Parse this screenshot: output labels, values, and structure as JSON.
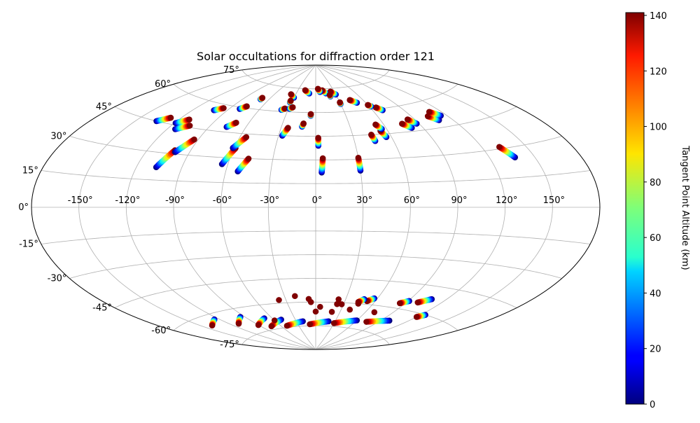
{
  "chart_data": {
    "type": "scatter",
    "projection": "aitoff",
    "title": "Solar occultations for diffraction order 121",
    "xlabel": "",
    "ylabel": "",
    "xlim": [
      -180,
      180
    ],
    "ylim": [
      -90,
      90
    ],
    "grid": true,
    "x_ticks": [
      "-150°",
      "-120°",
      "-90°",
      "-60°",
      "-30°",
      "0°",
      "30°",
      "60°",
      "90°",
      "120°",
      "150°"
    ],
    "x_tick_values": [
      -150,
      -120,
      -90,
      -60,
      -30,
      0,
      30,
      60,
      90,
      120,
      150
    ],
    "y_ticks": [
      "-75°",
      "-60°",
      "-45°",
      "-30°",
      "-15°",
      "0°",
      "15°",
      "30°",
      "45°",
      "60°",
      "75°"
    ],
    "y_tick_values": [
      -75,
      -60,
      -45,
      -30,
      -15,
      0,
      15,
      30,
      45,
      60,
      75
    ],
    "colorbar": {
      "label": "Tangent Point Altitude (km)",
      "min": 0,
      "max": 141,
      "ticks": [
        "0",
        "20",
        "40",
        "60",
        "80",
        "100",
        "120",
        "140"
      ],
      "tick_values": [
        0,
        20,
        40,
        60,
        80,
        100,
        120,
        140
      ],
      "colormap": "jet"
    },
    "tracks": [
      {
        "lon_start": -135,
        "lat_start": 45,
        "lon_end": -128,
        "lat_end": 48
      },
      {
        "lon_start": -119,
        "lat_start": 46,
        "lon_end": -112,
        "lat_end": 49
      },
      {
        "lon_start": -114,
        "lat_start": 43,
        "lon_end": -106,
        "lat_end": 46
      },
      {
        "lon_start": -107,
        "lat_start": 22,
        "lon_end": -101,
        "lat_end": 32
      },
      {
        "lon_start": -100,
        "lat_start": 31,
        "lon_end": -93,
        "lat_end": 39
      },
      {
        "lon_start": -102,
        "lat_start": 56,
        "lon_end": -96,
        "lat_end": 58
      },
      {
        "lon_start": -80,
        "lat_start": 59,
        "lon_end": -76,
        "lat_end": 61
      },
      {
        "lon_start": -76,
        "lat_start": 48,
        "lon_end": -71,
        "lat_end": 51
      },
      {
        "lon_start": -64,
        "lat_start": 26,
        "lon_end": -59,
        "lat_end": 36
      },
      {
        "lon_start": -61,
        "lat_start": 36,
        "lon_end": -55,
        "lat_end": 43
      },
      {
        "lon_start": -52,
        "lat_start": 22,
        "lon_end": -47,
        "lat_end": 30
      },
      {
        "lon_start": -27,
        "lat_start": 45,
        "lon_end": -24,
        "lat_end": 50
      },
      {
        "lon_start": -37,
        "lat_start": 61,
        "lon_end": -34,
        "lat_end": 62
      },
      {
        "lon_start": -29,
        "lat_start": 62,
        "lon_end": -26,
        "lat_end": 63
      },
      {
        "lon_start": -12,
        "lat_start": 51,
        "lon_end": -11,
        "lat_end": 53
      },
      {
        "lon_start": 2,
        "lat_start": 39,
        "lon_end": 2,
        "lat_end": 44
      },
      {
        "lon_start": 4,
        "lat_start": 22,
        "lon_end": 5,
        "lat_end": 31
      },
      {
        "lon_start": 30,
        "lat_start": 23,
        "lon_end": 30,
        "lat_end": 31
      },
      {
        "lon_start": 46,
        "lat_start": 41,
        "lon_end": 45,
        "lat_end": 45
      },
      {
        "lon_start": 56,
        "lat_start": 43,
        "lon_end": 54,
        "lat_end": 47
      },
      {
        "lon_start": 56,
        "lat_start": 48,
        "lon_end": 53,
        "lat_end": 51
      },
      {
        "lon_start": 81,
        "lat_start": 47,
        "lon_end": 76,
        "lat_end": 50
      },
      {
        "lon_start": 88,
        "lat_start": 49,
        "lon_end": 84,
        "lat_end": 52
      },
      {
        "lon_start": 109,
        "lat_start": 49,
        "lon_end": 104,
        "lat_end": 52
      },
      {
        "lon_start": 115,
        "lat_start": 51,
        "lon_end": 110,
        "lat_end": 54
      },
      {
        "lon_start": 137,
        "lat_start": 25,
        "lon_end": 132,
        "lat_end": 31
      },
      {
        "lon_start": 70,
        "lat_start": 59,
        "lon_end": 66,
        "lat_end": 61
      },
      {
        "lon_start": 50,
        "lat_start": 65,
        "lon_end": 44,
        "lat_end": 67
      },
      {
        "lon_start": 30,
        "lat_start": 71,
        "lon_end": 24,
        "lat_end": 73
      },
      {
        "lon_start": 16,
        "lat_start": 72,
        "lon_end": 11,
        "lat_end": 74
      },
      {
        "lon_start": -10,
        "lat_start": 72,
        "lon_end": -18,
        "lat_end": 74
      },
      {
        "lon_start": -30,
        "lat_start": 69,
        "lon_end": -37,
        "lat_end": 71
      },
      {
        "lon_start": 7,
        "lat_start": 73,
        "lon_end": 4,
        "lat_end": 75
      },
      {
        "lon_start": -5,
        "lat_start": 58,
        "lon_end": -5,
        "lat_end": 59
      },
      {
        "lon_start": 30,
        "lat_start": 65,
        "lon_end": 30,
        "lat_end": 66
      },
      {
        "lon_start": 62,
        "lat_start": 62,
        "lon_end": 60,
        "lat_end": 63
      },
      {
        "lon_start": 21,
        "lat_start": 70,
        "lon_end": 21,
        "lat_end": 71
      },
      {
        "lon_start": -32,
        "lat_start": 66,
        "lon_end": -32,
        "lat_end": 67
      },
      {
        "lon_start": -70,
        "lat_start": 66,
        "lon_end": -70,
        "lat_end": 67
      },
      {
        "lon_start": -125,
        "lat_start": -63,
        "lon_end": -140,
        "lat_end": -65
      },
      {
        "lon_start": -95,
        "lat_start": -65,
        "lon_end": -110,
        "lat_end": -68
      },
      {
        "lon_start": -70,
        "lat_start": -68,
        "lon_end": -90,
        "lat_end": -71
      },
      {
        "lon_start": -50,
        "lat_start": -70,
        "lon_end": -75,
        "lat_end": -73
      },
      {
        "lon_start": -20,
        "lat_start": -72,
        "lon_end": -50,
        "lat_end": -74
      },
      {
        "lon_start": 20,
        "lat_start": -72,
        "lon_end": -10,
        "lat_end": -74
      },
      {
        "lon_start": 60,
        "lat_start": -70,
        "lon_end": 30,
        "lat_end": -73
      },
      {
        "lon_start": 100,
        "lat_start": -67,
        "lon_end": 75,
        "lat_end": -70
      },
      {
        "lon_start": 57,
        "lat_start": -56,
        "lon_end": 52,
        "lat_end": -58
      },
      {
        "lon_start": 91,
        "lat_start": -55,
        "lon_end": 85,
        "lat_end": -57
      },
      {
        "lon_start": 108,
        "lat_start": -52,
        "lon_end": 100,
        "lat_end": -55
      },
      {
        "lon_start": 48,
        "lat_start": -57,
        "lon_end": 44,
        "lat_end": -59
      },
      {
        "lon_start": 124,
        "lat_start": -60,
        "lon_end": 120,
        "lat_end": -62
      }
    ],
    "points": [
      {
        "lon": -37,
        "lat": -58,
        "alt": 141
      },
      {
        "lon": -20,
        "lat": -56,
        "alt": 141
      },
      {
        "lon": -7,
        "lat": -58,
        "alt": 141
      },
      {
        "lon": 23,
        "lat": -58,
        "alt": 141
      },
      {
        "lon": 23,
        "lat": -61,
        "alt": 141
      },
      {
        "lon": 28,
        "lat": -61,
        "alt": 141
      },
      {
        "lon": 45,
        "lat": -60,
        "alt": 141
      },
      {
        "lon": 70,
        "lat": -64,
        "alt": 141
      },
      {
        "lon": 5,
        "lat": -63,
        "alt": 141
      },
      {
        "lon": -5,
        "lat": -60,
        "alt": 141
      },
      {
        "lon": 40,
        "lat": -64,
        "alt": 141
      },
      {
        "lon": -60,
        "lat": -70,
        "alt": 141
      },
      {
        "lon": 0,
        "lat": -66,
        "alt": 141
      },
      {
        "lon": 20,
        "lat": -66,
        "alt": 141
      }
    ]
  }
}
